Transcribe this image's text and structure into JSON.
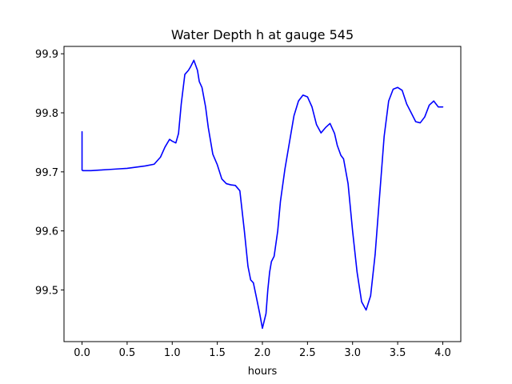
{
  "chart_data": {
    "type": "line",
    "title": "Water Depth h at gauge 545",
    "xlabel": "hours",
    "ylabel": "",
    "xlim": [
      -0.2,
      4.2
    ],
    "ylim": [
      99.4125,
      99.9125
    ],
    "xticks": [
      0.0,
      0.5,
      1.0,
      1.5,
      2.0,
      2.5,
      3.0,
      3.5,
      4.0
    ],
    "xtick_labels": [
      "0.0",
      "0.5",
      "1.0",
      "1.5",
      "2.0",
      "2.5",
      "3.0",
      "3.5",
      "4.0"
    ],
    "yticks": [
      99.5,
      99.6,
      99.7,
      99.8,
      99.9
    ],
    "ytick_labels": [
      "99.5",
      "99.6",
      "99.7",
      "99.8",
      "99.9"
    ],
    "grid": false,
    "series": [
      {
        "color": "#0000ff",
        "x": [
          0.0,
          0.0,
          0.01,
          0.1,
          0.2,
          0.3,
          0.4,
          0.5,
          0.6,
          0.7,
          0.8,
          0.87,
          0.92,
          0.97,
          1.0,
          1.04,
          1.07,
          1.1,
          1.14,
          1.18,
          1.2,
          1.24,
          1.28,
          1.3,
          1.33,
          1.37,
          1.4,
          1.45,
          1.5,
          1.55,
          1.6,
          1.65,
          1.7,
          1.75,
          1.8,
          1.84,
          1.87,
          1.9,
          1.93,
          1.97,
          2.0,
          2.04,
          2.06,
          2.08,
          2.1,
          2.13,
          2.17,
          2.2,
          2.25,
          2.3,
          2.35,
          2.4,
          2.45,
          2.5,
          2.55,
          2.6,
          2.65,
          2.7,
          2.75,
          2.8,
          2.83,
          2.87,
          2.9,
          2.95,
          3.0,
          3.05,
          3.1,
          3.15,
          3.2,
          3.25,
          3.3,
          3.35,
          3.4,
          3.45,
          3.5,
          3.55,
          3.6,
          3.65,
          3.7,
          3.75,
          3.8,
          3.85,
          3.9,
          3.95,
          4.0
        ],
        "y": [
          99.768,
          99.703,
          99.702,
          99.702,
          99.703,
          99.704,
          99.705,
          99.706,
          99.708,
          99.71,
          99.713,
          99.725,
          99.742,
          99.755,
          99.752,
          99.749,
          99.765,
          99.815,
          99.865,
          99.872,
          99.877,
          99.889,
          99.872,
          99.853,
          99.843,
          99.81,
          99.775,
          99.73,
          99.712,
          99.688,
          99.68,
          99.678,
          99.677,
          99.668,
          99.6,
          99.54,
          99.517,
          99.512,
          99.49,
          99.46,
          99.435,
          99.46,
          99.5,
          99.53,
          99.548,
          99.557,
          99.6,
          99.65,
          99.705,
          99.75,
          99.795,
          99.82,
          99.83,
          99.827,
          99.81,
          99.78,
          99.766,
          99.775,
          99.782,
          99.765,
          99.745,
          99.728,
          99.722,
          99.68,
          99.6,
          99.53,
          99.48,
          99.466,
          99.49,
          99.56,
          99.66,
          99.76,
          99.82,
          99.84,
          99.843,
          99.838,
          99.815,
          99.8,
          99.785,
          99.783,
          99.793,
          99.813,
          99.82,
          99.81,
          99.81
        ]
      }
    ]
  }
}
